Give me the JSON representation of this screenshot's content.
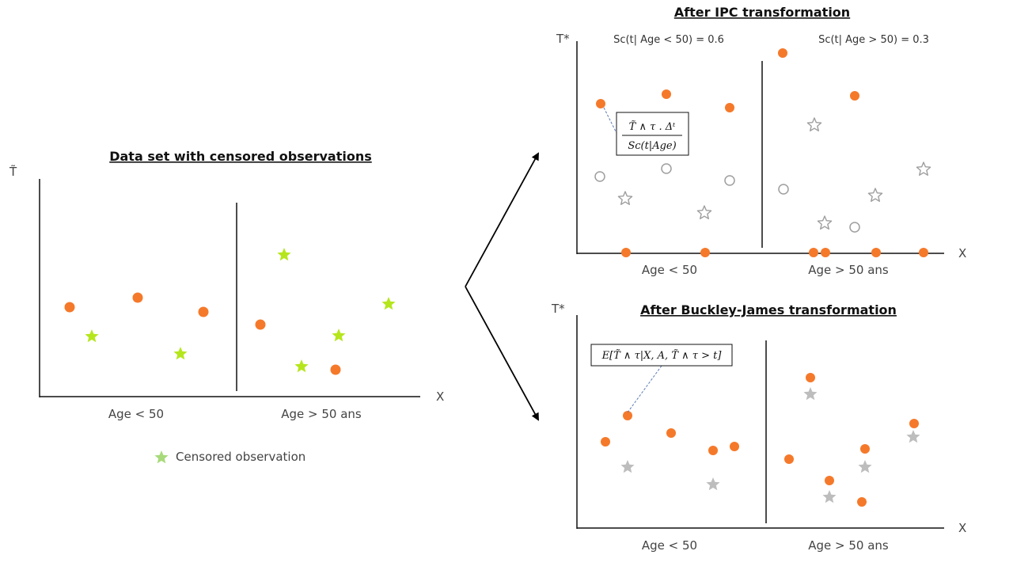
{
  "colors": {
    "uncensored": "#F5792A",
    "censored": "#B5E61D",
    "censored_legend": "#A8DA7A",
    "zeroed": "#9E9E9E",
    "axis": "#111111"
  },
  "left_panel": {
    "title": "Data set with censored observations",
    "y_label": "T̃",
    "x_label": "X",
    "groups": [
      "Age < 50",
      "Age > 50 ans"
    ],
    "legend_label": "Censored observation",
    "legend_icon": "star-icon"
  },
  "ipc_panel": {
    "title": "After IPC transformation",
    "y_label": "T*",
    "x_label": "X",
    "groups": [
      "Age < 50",
      "Age > 50 ans"
    ],
    "weight_left": "Sc(t| Age < 50) = 0.6",
    "weight_right": "Sc(t| Age > 50) = 0.3",
    "formula_numerator": "T̃ ∧ τ . Δᵗ",
    "formula_denominator": "Sᴄ(t|Age)"
  },
  "bj_panel": {
    "title": "After Buckley-James transformation",
    "y_label": "T*",
    "x_label": "X",
    "groups": [
      "Age < 50",
      "Age > 50 ans"
    ],
    "formula": "E[T̃ ∧ τ|X, A, T̃ ∧ τ > t]"
  },
  "icons": {
    "arrow": "arrow-icon",
    "star": "star-icon",
    "circle": "circle-icon"
  }
}
